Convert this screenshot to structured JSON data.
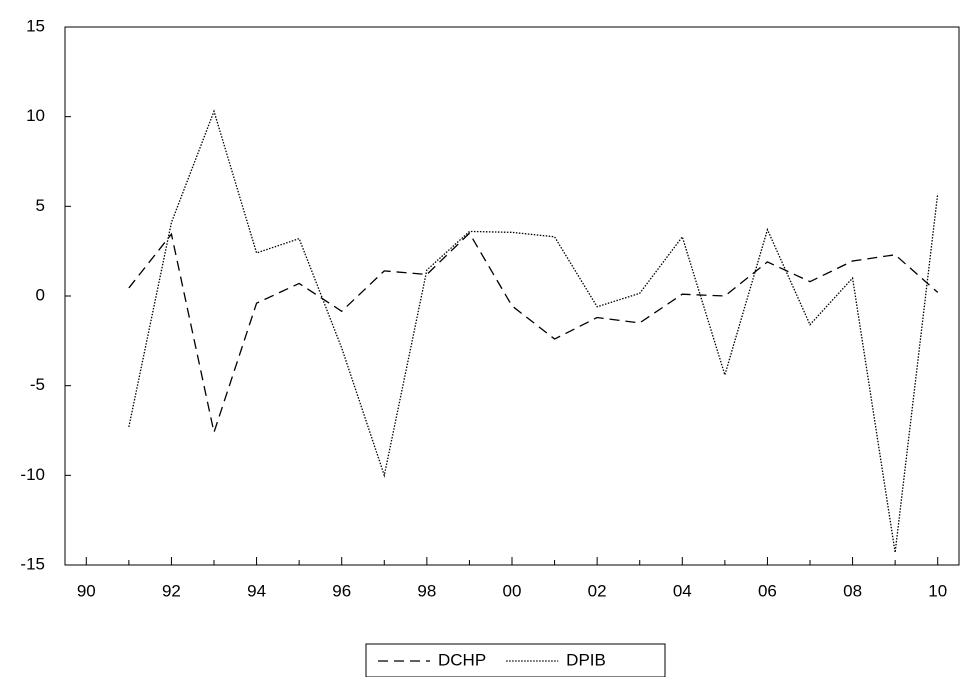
{
  "chart_data": {
    "type": "line",
    "categories": [
      "90",
      null,
      "92",
      null,
      "94",
      null,
      "96",
      null,
      "98",
      null,
      "00",
      null,
      "02",
      null,
      "04",
      null,
      "06",
      null,
      "08",
      null,
      "10"
    ],
    "series": [
      {
        "name": "DCHP",
        "color": "#000000",
        "line_style": "dashed",
        "values": [
          null,
          0.45,
          3.45,
          -7.6,
          -0.4,
          0.7,
          -0.85,
          1.4,
          1.2,
          3.5,
          -0.55,
          -2.4,
          -1.2,
          -1.5,
          0.1,
          0.0,
          1.9,
          0.8,
          1.95,
          2.3,
          0.2
        ]
      },
      {
        "name": "DPIB",
        "color": "#000000",
        "line_style": "dotted",
        "values": [
          null,
          -7.3,
          4.1,
          10.3,
          2.4,
          3.2,
          -2.9,
          -10.0,
          1.45,
          3.6,
          3.55,
          3.3,
          -0.6,
          0.15,
          3.3,
          -4.4,
          3.7,
          -1.6,
          1.0,
          -14.3,
          5.7
        ]
      }
    ],
    "ylim": [
      -15,
      15
    ],
    "yticks": [
      -15,
      -10,
      -5,
      0,
      5,
      10,
      15
    ],
    "grid": false,
    "legend": "bottom"
  }
}
